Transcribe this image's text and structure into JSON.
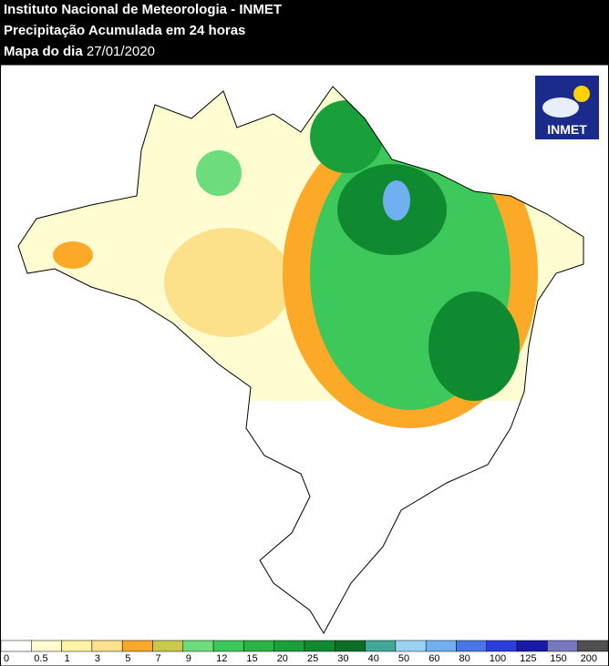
{
  "header": {
    "line1": "Instituto Nacional de Meteorologia - INMET",
    "line2": "Precipitação Acumulada em 24 horas",
    "line3_label": "Mapa do dia",
    "line3_date": "27/01/2020"
  },
  "logo": {
    "text": "INMET"
  },
  "legend": {
    "thresholds": [
      0,
      0.5,
      1,
      3,
      5,
      7,
      9,
      12,
      15,
      20,
      25,
      30,
      40,
      50,
      60,
      80,
      100,
      125,
      150,
      200
    ],
    "colors": [
      "#ffffff",
      "#fefcd0",
      "#fdf3a4",
      "#fde08a",
      "#fca928",
      "#c8c84a",
      "#6ddc7c",
      "#3cc85a",
      "#2bb444",
      "#1aa03a",
      "#0f8a30",
      "#0a7028",
      "#3fa896",
      "#9ad2f4",
      "#70b0f0",
      "#4878e8",
      "#2a3ee0",
      "#1a1aa8",
      "#7878c0",
      "#505050"
    ]
  }
}
